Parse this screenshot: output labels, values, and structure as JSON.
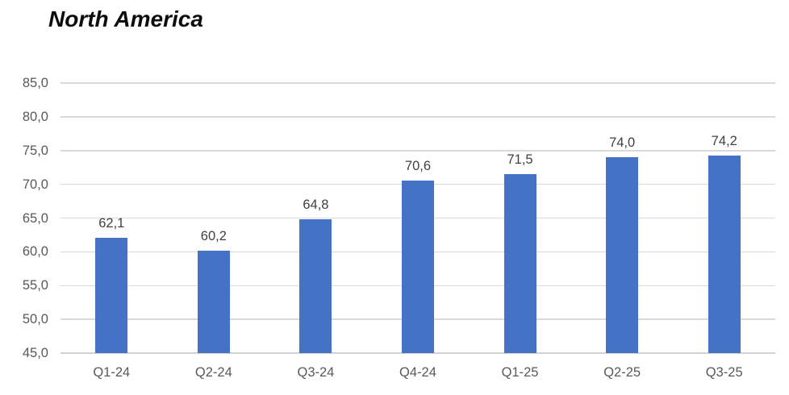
{
  "title": "North America",
  "chart_data": {
    "type": "bar",
    "title": "North America",
    "categories": [
      "Q1-24",
      "Q2-24",
      "Q3-24",
      "Q4-24",
      "Q1-25",
      "Q2-25",
      "Q3-25"
    ],
    "values": [
      62.1,
      60.2,
      64.8,
      70.6,
      71.5,
      74.0,
      74.2
    ],
    "value_labels": [
      "62,1",
      "60,2",
      "64,8",
      "70,6",
      "71,5",
      "74,0",
      "74,2"
    ],
    "xlabel": "",
    "ylabel": "",
    "ylim": [
      45,
      85
    ],
    "ytick_step": 5,
    "ytick_labels": [
      "45,0",
      "50,0",
      "55,0",
      "60,0",
      "65,0",
      "70,0",
      "75,0",
      "80,0",
      "85,0"
    ],
    "grid": "horizontal",
    "legend_position": "none",
    "decimal_separator": ",",
    "colors": {
      "bar": "#4472C4",
      "title_text": "#0D0D0D",
      "axis_text": "#595959",
      "value_label_text": "#404040",
      "gridline": "#D9D9D9",
      "axis_line": "#D2D2D2",
      "background": "#FFFFFF"
    }
  }
}
